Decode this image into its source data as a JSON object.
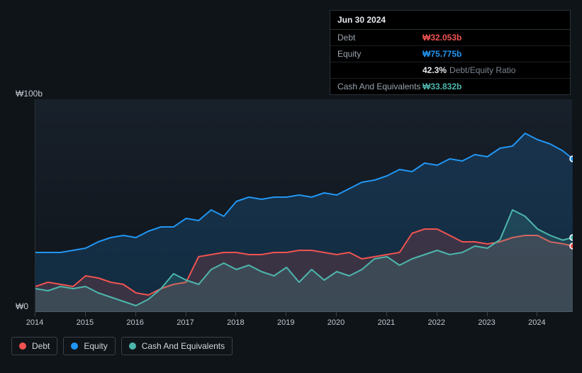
{
  "tooltip": {
    "date": "Jun 30 2024",
    "rows": {
      "debt": {
        "label": "Debt",
        "value": "₩32.053b"
      },
      "equity": {
        "label": "Equity",
        "value": "₩75.775b"
      },
      "ratio": {
        "pct": "42.3%",
        "label": "Debt/Equity Ratio"
      },
      "cash": {
        "label": "Cash And Equivalents",
        "value": "₩33.832b"
      }
    }
  },
  "chart": {
    "type": "area",
    "background_gradient_top": "rgba(30,40,55,0.6)",
    "background_gradient_bottom": "rgba(15,20,25,0.2)",
    "y_axis": {
      "top_label": "₩100b",
      "bottom_label": "₩0",
      "min": 0,
      "max": 100
    },
    "x_axis": {
      "years": [
        "2014",
        "2015",
        "2016",
        "2017",
        "2018",
        "2019",
        "2020",
        "2021",
        "2022",
        "2023",
        "2024"
      ],
      "min": 2014,
      "max": 2024.7
    },
    "series": {
      "equity": {
        "label": "Equity",
        "color": "#2196f3",
        "fill": "rgba(33,150,243,0.18)",
        "line_width": 2,
        "data": [
          [
            2014.0,
            28
          ],
          [
            2014.25,
            28
          ],
          [
            2014.5,
            28
          ],
          [
            2014.75,
            29
          ],
          [
            2015.0,
            30
          ],
          [
            2015.25,
            33
          ],
          [
            2015.5,
            35
          ],
          [
            2015.75,
            36
          ],
          [
            2016.0,
            35
          ],
          [
            2016.25,
            38
          ],
          [
            2016.5,
            40
          ],
          [
            2016.75,
            40
          ],
          [
            2017.0,
            44
          ],
          [
            2017.25,
            43
          ],
          [
            2017.5,
            48
          ],
          [
            2017.75,
            45
          ],
          [
            2018.0,
            52
          ],
          [
            2018.25,
            54
          ],
          [
            2018.5,
            53
          ],
          [
            2018.75,
            54
          ],
          [
            2019.0,
            54
          ],
          [
            2019.25,
            55
          ],
          [
            2019.5,
            54
          ],
          [
            2019.75,
            56
          ],
          [
            2020.0,
            55
          ],
          [
            2020.25,
            58
          ],
          [
            2020.5,
            61
          ],
          [
            2020.75,
            62
          ],
          [
            2021.0,
            64
          ],
          [
            2021.25,
            67
          ],
          [
            2021.5,
            66
          ],
          [
            2021.75,
            70
          ],
          [
            2022.0,
            69
          ],
          [
            2022.25,
            72
          ],
          [
            2022.5,
            71
          ],
          [
            2022.75,
            74
          ],
          [
            2023.0,
            73
          ],
          [
            2023.25,
            77
          ],
          [
            2023.5,
            78
          ],
          [
            2023.75,
            84
          ],
          [
            2024.0,
            81
          ],
          [
            2024.25,
            79
          ],
          [
            2024.5,
            75.8
          ],
          [
            2024.7,
            72
          ]
        ]
      },
      "debt": {
        "label": "Debt",
        "color": "#ef5350",
        "fill": "rgba(239,83,80,0.18)",
        "line_width": 2,
        "data": [
          [
            2014.0,
            12
          ],
          [
            2014.25,
            14
          ],
          [
            2014.5,
            13
          ],
          [
            2014.75,
            12
          ],
          [
            2015.0,
            17
          ],
          [
            2015.25,
            16
          ],
          [
            2015.5,
            14
          ],
          [
            2015.75,
            13
          ],
          [
            2016.0,
            9
          ],
          [
            2016.25,
            8
          ],
          [
            2016.5,
            11
          ],
          [
            2016.75,
            13
          ],
          [
            2017.0,
            14
          ],
          [
            2017.25,
            26
          ],
          [
            2017.5,
            27
          ],
          [
            2017.75,
            28
          ],
          [
            2018.0,
            28
          ],
          [
            2018.25,
            27
          ],
          [
            2018.5,
            27
          ],
          [
            2018.75,
            28
          ],
          [
            2019.0,
            28
          ],
          [
            2019.25,
            29
          ],
          [
            2019.5,
            29
          ],
          [
            2019.75,
            28
          ],
          [
            2020.0,
            27
          ],
          [
            2020.25,
            28
          ],
          [
            2020.5,
            25
          ],
          [
            2020.75,
            26
          ],
          [
            2021.0,
            27
          ],
          [
            2021.25,
            28
          ],
          [
            2021.5,
            37
          ],
          [
            2021.75,
            39
          ],
          [
            2022.0,
            39
          ],
          [
            2022.25,
            36
          ],
          [
            2022.5,
            33
          ],
          [
            2022.75,
            33
          ],
          [
            2023.0,
            32
          ],
          [
            2023.25,
            33
          ],
          [
            2023.5,
            35
          ],
          [
            2023.75,
            36
          ],
          [
            2024.0,
            36
          ],
          [
            2024.25,
            33
          ],
          [
            2024.5,
            32.1
          ],
          [
            2024.7,
            31
          ]
        ]
      },
      "cash": {
        "label": "Cash And Equivalents",
        "color": "#4db6ac",
        "fill": "rgba(77,182,172,0.18)",
        "line_width": 2,
        "data": [
          [
            2014.0,
            11
          ],
          [
            2014.25,
            10
          ],
          [
            2014.5,
            12
          ],
          [
            2014.75,
            11
          ],
          [
            2015.0,
            12
          ],
          [
            2015.25,
            9
          ],
          [
            2015.5,
            7
          ],
          [
            2015.75,
            5
          ],
          [
            2016.0,
            3
          ],
          [
            2016.25,
            6
          ],
          [
            2016.5,
            11
          ],
          [
            2016.75,
            18
          ],
          [
            2017.0,
            15
          ],
          [
            2017.25,
            13
          ],
          [
            2017.5,
            20
          ],
          [
            2017.75,
            23
          ],
          [
            2018.0,
            20
          ],
          [
            2018.25,
            22
          ],
          [
            2018.5,
            19
          ],
          [
            2018.75,
            17
          ],
          [
            2019.0,
            21
          ],
          [
            2019.25,
            14
          ],
          [
            2019.5,
            20
          ],
          [
            2019.75,
            15
          ],
          [
            2020.0,
            19
          ],
          [
            2020.25,
            17
          ],
          [
            2020.5,
            20
          ],
          [
            2020.75,
            25
          ],
          [
            2021.0,
            26
          ],
          [
            2021.25,
            22
          ],
          [
            2021.5,
            25
          ],
          [
            2021.75,
            27
          ],
          [
            2022.0,
            29
          ],
          [
            2022.25,
            27
          ],
          [
            2022.5,
            28
          ],
          [
            2022.75,
            31
          ],
          [
            2023.0,
            30
          ],
          [
            2023.25,
            34
          ],
          [
            2023.5,
            48
          ],
          [
            2023.75,
            45
          ],
          [
            2024.0,
            39
          ],
          [
            2024.25,
            36
          ],
          [
            2024.5,
            33.8
          ],
          [
            2024.7,
            35
          ]
        ]
      }
    },
    "draw_order": [
      "equity",
      "debt",
      "cash"
    ],
    "legend_order": [
      "debt",
      "equity",
      "cash"
    ],
    "marker": {
      "x": 2024.7,
      "radius": 4,
      "stroke": "#ffffff",
      "stroke_width": 1.5
    }
  },
  "colors": {
    "page_bg": "#0f1419",
    "border": "#2a3138",
    "text_muted": "#9aa4b0",
    "text": "#d0d6dc"
  }
}
